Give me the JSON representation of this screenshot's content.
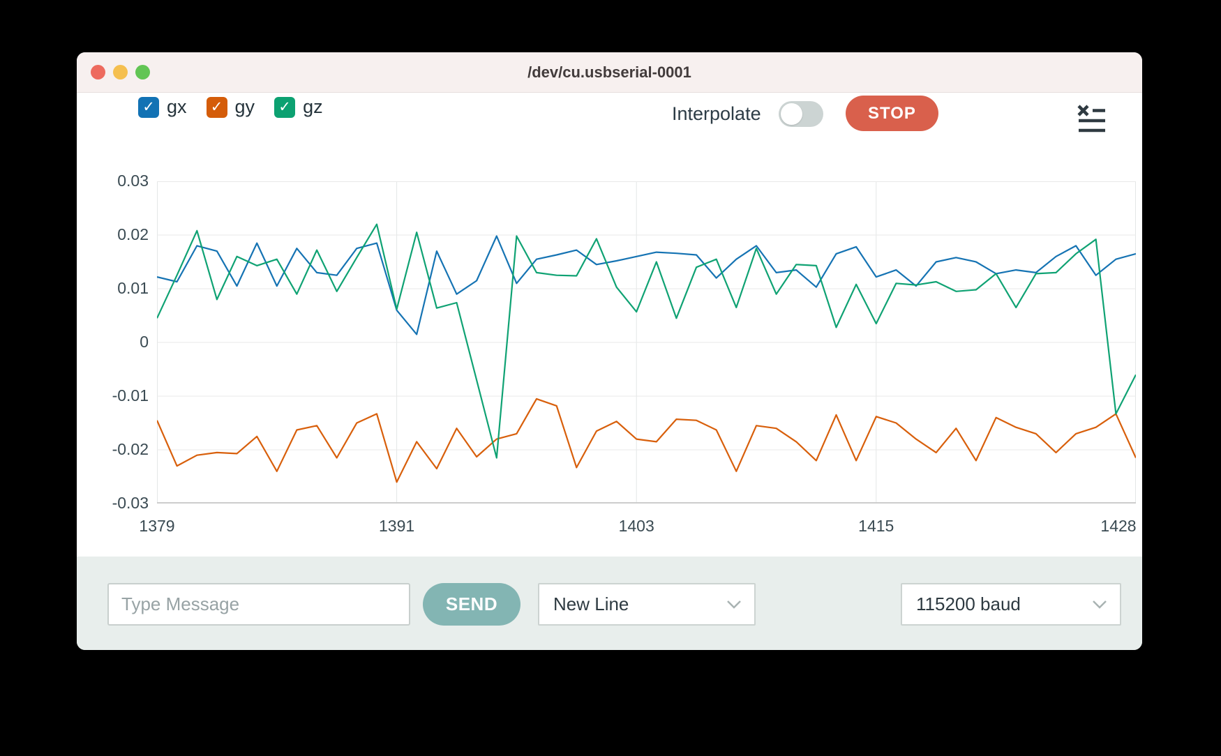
{
  "window": {
    "title": "/dev/cu.usbserial-0001"
  },
  "toolbar": {
    "interpolate_label": "Interpolate",
    "interpolate_on": false,
    "stop_label": "STOP"
  },
  "legend": [
    {
      "label": "gx",
      "checked": true,
      "color": "#1272b4"
    },
    {
      "label": "gy",
      "checked": true,
      "color": "#d45c09"
    },
    {
      "label": "gz",
      "checked": true,
      "color": "#0ca171"
    }
  ],
  "colors": {
    "stop_bg": "#d9604c",
    "send_bg": "#83b5b3"
  },
  "composer": {
    "message_placeholder": "Type Message",
    "send_label": "SEND",
    "line_ending_value": "New Line",
    "baud_value": "115200 baud"
  },
  "chart_data": {
    "type": "line",
    "title": "",
    "xlabel": "",
    "ylabel": "",
    "grid": true,
    "legend_position": "top-left",
    "xlim": [
      1379,
      1428
    ],
    "ylim": [
      -0.03,
      0.03
    ],
    "xticks": [
      1379,
      1391,
      1403,
      1415,
      1428
    ],
    "yticks": [
      "0.03",
      "0.02",
      "0.01",
      "0",
      "-0.01",
      "-0.02",
      "-0.03"
    ],
    "x": [
      1379,
      1380,
      1381,
      1382,
      1383,
      1384,
      1385,
      1386,
      1387,
      1388,
      1389,
      1390,
      1391,
      1392,
      1393,
      1394,
      1395,
      1396,
      1397,
      1398,
      1399,
      1400,
      1401,
      1402,
      1403,
      1404,
      1405,
      1406,
      1407,
      1408,
      1409,
      1410,
      1411,
      1412,
      1413,
      1414,
      1415,
      1416,
      1417,
      1418,
      1419,
      1420,
      1421,
      1422,
      1423,
      1424,
      1425,
      1426,
      1427,
      1428
    ],
    "series": [
      {
        "name": "gx",
        "color": "#1573b3",
        "values": [
          0.0122,
          0.0113,
          0.018,
          0.017,
          0.0105,
          0.0185,
          0.0105,
          0.0175,
          0.013,
          0.0125,
          0.0175,
          0.0185,
          0.006,
          0.0015,
          0.017,
          0.009,
          0.0115,
          0.0198,
          0.011,
          0.0155,
          0.0163,
          0.0172,
          0.0145,
          0.0152,
          0.016,
          0.0168,
          0.0166,
          0.0163,
          0.012,
          0.0155,
          0.018,
          0.013,
          0.0135,
          0.0103,
          0.0165,
          0.0178,
          0.0122,
          0.0135,
          0.0105,
          0.015,
          0.0158,
          0.015,
          0.0128,
          0.0135,
          0.013,
          0.016,
          0.018,
          0.0125,
          0.0155,
          0.0165
        ]
      },
      {
        "name": "gy",
        "color": "#d85f0b",
        "values": [
          -0.0145,
          -0.023,
          -0.021,
          -0.0205,
          -0.0207,
          -0.0175,
          -0.024,
          -0.0163,
          -0.0155,
          -0.0215,
          -0.015,
          -0.0133,
          -0.026,
          -0.0185,
          -0.0235,
          -0.016,
          -0.0213,
          -0.018,
          -0.017,
          -0.0105,
          -0.0118,
          -0.0233,
          -0.0165,
          -0.0147,
          -0.018,
          -0.0185,
          -0.0143,
          -0.0145,
          -0.0163,
          -0.024,
          -0.0155,
          -0.016,
          -0.0185,
          -0.022,
          -0.0135,
          -0.022,
          -0.0138,
          -0.015,
          -0.018,
          -0.0205,
          -0.016,
          -0.022,
          -0.014,
          -0.0158,
          -0.017,
          -0.0205,
          -0.017,
          -0.0158,
          -0.0133,
          -0.0215
        ]
      },
      {
        "name": "gz",
        "color": "#0fa273",
        "values": [
          0.0045,
          0.0125,
          0.0208,
          0.008,
          0.016,
          0.0143,
          0.0155,
          0.009,
          0.0172,
          0.0095,
          0.0158,
          0.022,
          0.0062,
          0.0205,
          0.0064,
          0.0074,
          -0.007,
          -0.0215,
          0.0198,
          0.013,
          0.0125,
          0.0124,
          0.0193,
          0.0103,
          0.0057,
          0.015,
          0.0045,
          0.014,
          0.0155,
          0.0065,
          0.0175,
          0.009,
          0.0145,
          0.0143,
          0.0028,
          0.0108,
          0.0035,
          0.011,
          0.0107,
          0.0113,
          0.0095,
          0.0098,
          0.0128,
          0.0065,
          0.0128,
          0.013,
          0.0165,
          0.0192,
          -0.0133,
          -0.006
        ]
      }
    ]
  }
}
